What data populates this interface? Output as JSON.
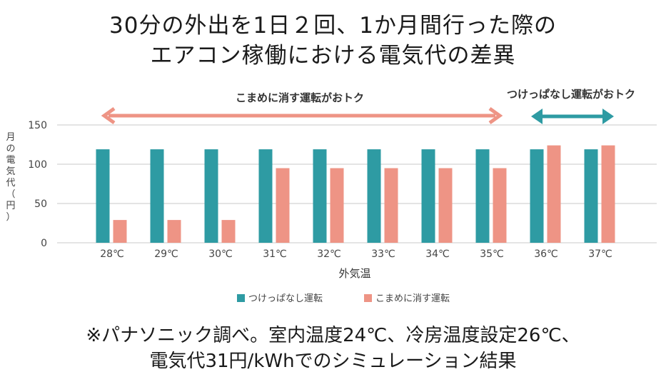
{
  "title_lines": [
    "30分の外出を1日２回、1か月間行った際の",
    "エアコン稼働における電気代の差異"
  ],
  "footnote_lines": [
    "※パナソニック調べ。室内温度24℃、冷房温度設定26℃、",
    "電気代31円/kWhでのシミュレーション結果"
  ],
  "annotations": {
    "left_range": "こまめに消す運転がおトク",
    "right_range": "つけっぱなし運転がおトク"
  },
  "colors": {
    "series1": "#2e9ba3",
    "series2": "#ee9485",
    "arrow_left": "#ee9485",
    "arrow_right": "#2e9ba3",
    "grid": "#c8c8c8"
  },
  "chart_data": {
    "type": "bar",
    "title": "30分の外出を1日２回、1か月間行った際のエアコン稼働における電気代の差異",
    "xlabel": "外気温",
    "ylabel": "月の電気代（円）",
    "categories": [
      "28℃",
      "29℃",
      "30℃",
      "31℃",
      "32℃",
      "33℃",
      "34℃",
      "35℃",
      "36℃",
      "37℃"
    ],
    "series": [
      {
        "name": "つけっぱなし運転",
        "values": [
          119,
          119,
          119,
          119,
          119,
          119,
          119,
          119,
          119,
          119
        ]
      },
      {
        "name": "こまめに消す運転",
        "values": [
          29,
          29,
          29,
          95,
          95,
          95,
          95,
          95,
          124,
          124
        ]
      }
    ],
    "ylim": [
      0,
      150
    ],
    "yticks": [
      0,
      50,
      100,
      150
    ],
    "grid": true,
    "legend": "bottom"
  }
}
